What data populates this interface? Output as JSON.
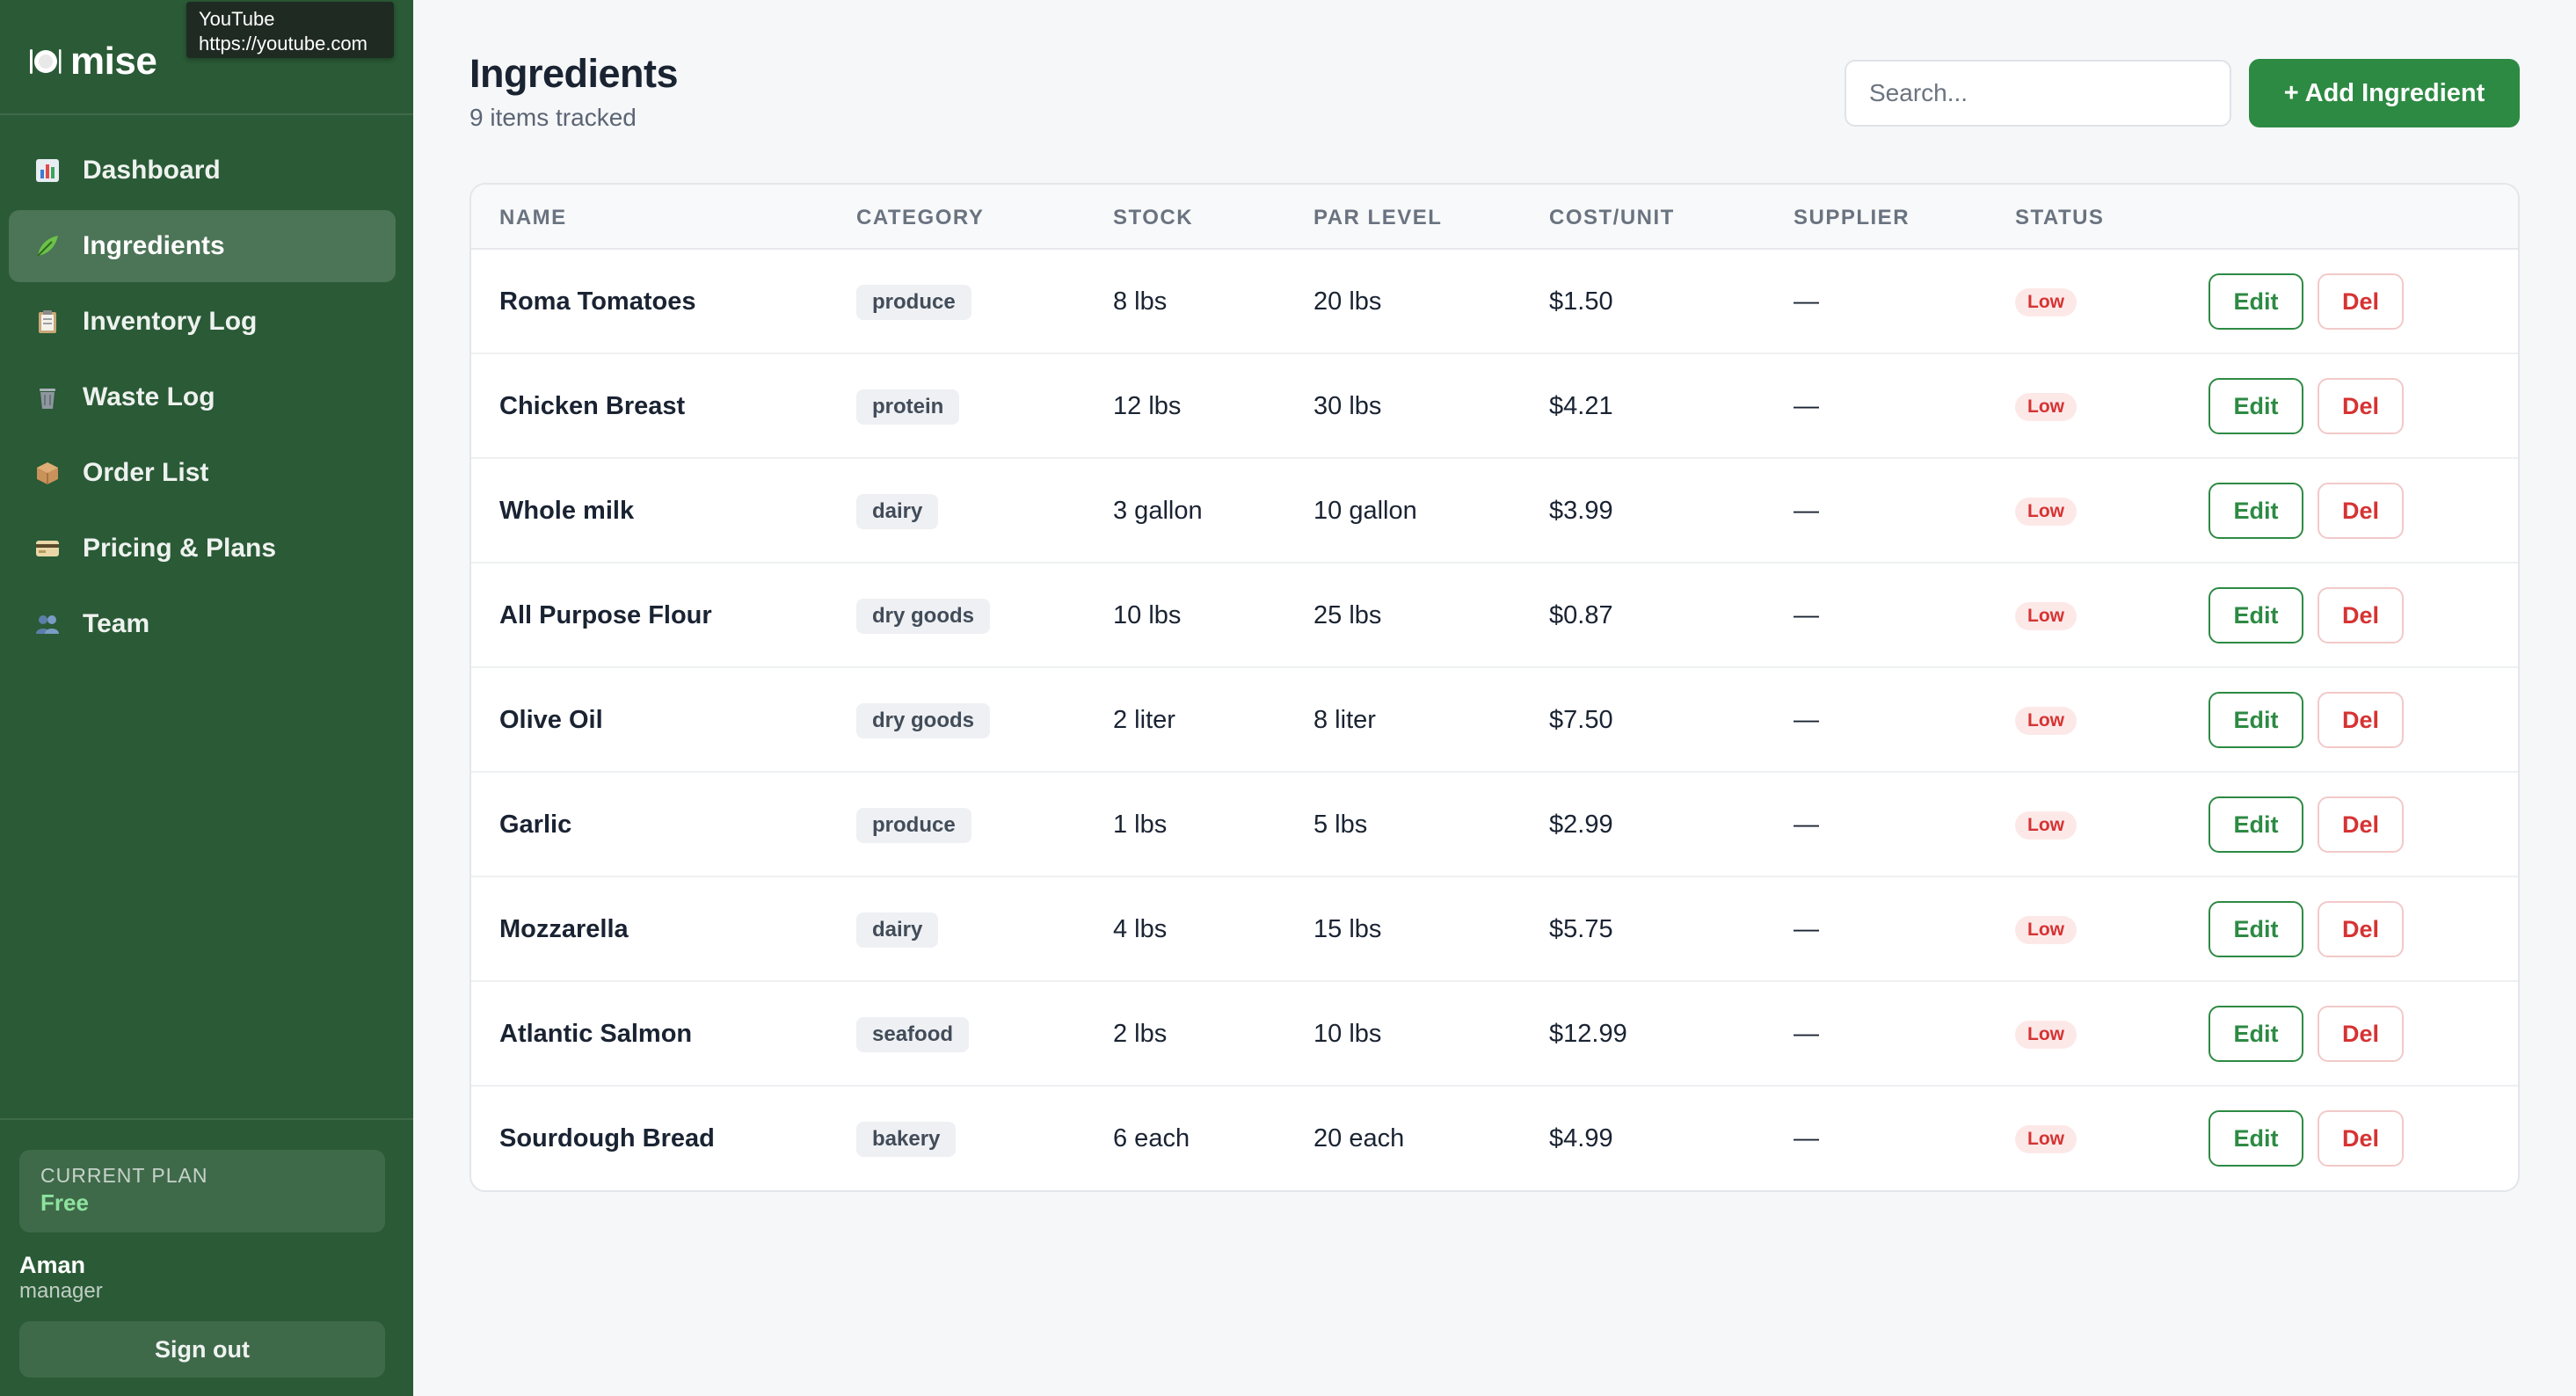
{
  "tooltip": {
    "title": "YouTube",
    "url": "https://youtube.com"
  },
  "brand": {
    "name": "mise",
    "icon": "plate-icon"
  },
  "sidebar": {
    "items": [
      {
        "label": "Dashboard",
        "icon": "chart-icon",
        "active": false
      },
      {
        "label": "Ingredients",
        "icon": "leaf-icon",
        "active": true
      },
      {
        "label": "Inventory Log",
        "icon": "clipboard-icon",
        "active": false
      },
      {
        "label": "Waste Log",
        "icon": "trash-icon",
        "active": false
      },
      {
        "label": "Order List",
        "icon": "box-icon",
        "active": false
      },
      {
        "label": "Pricing & Plans",
        "icon": "credit-card-icon",
        "active": false
      },
      {
        "label": "Team",
        "icon": "people-icon",
        "active": false
      }
    ],
    "plan": {
      "label": "CURRENT PLAN",
      "value": "Free"
    },
    "user": {
      "name": "Aman",
      "role": "manager"
    },
    "signout_label": "Sign out"
  },
  "header": {
    "title": "Ingredients",
    "subtitle": "9 items tracked",
    "search_placeholder": "Search...",
    "add_label": "+ Add Ingredient"
  },
  "table": {
    "columns": [
      "NAME",
      "CATEGORY",
      "STOCK",
      "PAR LEVEL",
      "COST/UNIT",
      "SUPPLIER",
      "STATUS"
    ],
    "rows": [
      {
        "name": "Roma Tomatoes",
        "category": "produce",
        "stock": "8 lbs",
        "par": "20 lbs",
        "cost": "$1.50",
        "supplier": "—",
        "status": "Low"
      },
      {
        "name": "Chicken Breast",
        "category": "protein",
        "stock": "12 lbs",
        "par": "30 lbs",
        "cost": "$4.21",
        "supplier": "—",
        "status": "Low"
      },
      {
        "name": "Whole milk",
        "category": "dairy",
        "stock": "3 gallon",
        "par": "10 gallon",
        "cost": "$3.99",
        "supplier": "—",
        "status": "Low"
      },
      {
        "name": "All Purpose Flour",
        "category": "dry goods",
        "stock": "10 lbs",
        "par": "25 lbs",
        "cost": "$0.87",
        "supplier": "—",
        "status": "Low"
      },
      {
        "name": "Olive Oil",
        "category": "dry goods",
        "stock": "2 liter",
        "par": "8 liter",
        "cost": "$7.50",
        "supplier": "—",
        "status": "Low"
      },
      {
        "name": "Garlic",
        "category": "produce",
        "stock": "1 lbs",
        "par": "5 lbs",
        "cost": "$2.99",
        "supplier": "—",
        "status": "Low"
      },
      {
        "name": "Mozzarella",
        "category": "dairy",
        "stock": "4 lbs",
        "par": "15 lbs",
        "cost": "$5.75",
        "supplier": "—",
        "status": "Low"
      },
      {
        "name": "Atlantic Salmon",
        "category": "seafood",
        "stock": "2 lbs",
        "par": "10 lbs",
        "cost": "$12.99",
        "supplier": "—",
        "status": "Low"
      },
      {
        "name": "Sourdough Bread",
        "category": "bakery",
        "stock": "6 each",
        "par": "20 each",
        "cost": "$4.99",
        "supplier": "—",
        "status": "Low"
      }
    ],
    "edit_label": "Edit",
    "delete_label": "Del"
  },
  "colors": {
    "sidebar": "#2a5a36",
    "accent": "#2d8a43",
    "danger": "#d63333",
    "plan_value": "#8ee39d"
  }
}
